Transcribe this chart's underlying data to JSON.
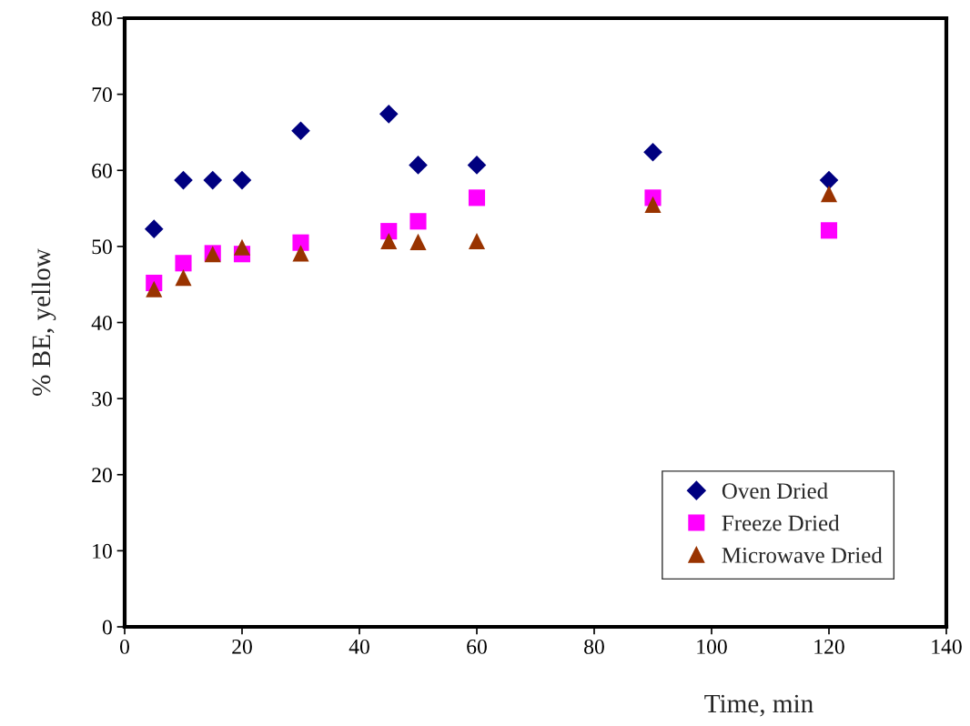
{
  "chart_data": {
    "type": "scatter",
    "xlabel": "Time, min",
    "ylabel": "% BE, yellow",
    "x": [
      5,
      10,
      15,
      20,
      30,
      45,
      50,
      60,
      90,
      120
    ],
    "series": [
      {
        "name": "Oven Dried",
        "color": "#000080",
        "marker": "diamond",
        "values": [
          52.3,
          58.7,
          58.7,
          58.7,
          65.2,
          67.4,
          60.7,
          60.7,
          62.4,
          58.7
        ]
      },
      {
        "name": "Freeze Dried",
        "color": "#ff00ff",
        "marker": "square",
        "values": [
          45.2,
          47.8,
          49.1,
          49.0,
          50.5,
          52.0,
          53.3,
          56.4,
          56.4,
          52.1
        ]
      },
      {
        "name": "Microwave Dried",
        "color": "#993300",
        "marker": "triangle",
        "values": [
          44.4,
          45.9,
          49.0,
          49.9,
          49.1,
          50.7,
          50.6,
          50.7,
          55.5,
          56.9
        ]
      }
    ],
    "xlim": [
      0,
      140
    ],
    "xticks": [
      0,
      20,
      40,
      60,
      80,
      100,
      120,
      140
    ],
    "ylim": [
      0,
      80
    ],
    "yticks": [
      0,
      10,
      20,
      30,
      40,
      50,
      60,
      70,
      80
    ],
    "grid": false,
    "legend": "bottom right"
  }
}
